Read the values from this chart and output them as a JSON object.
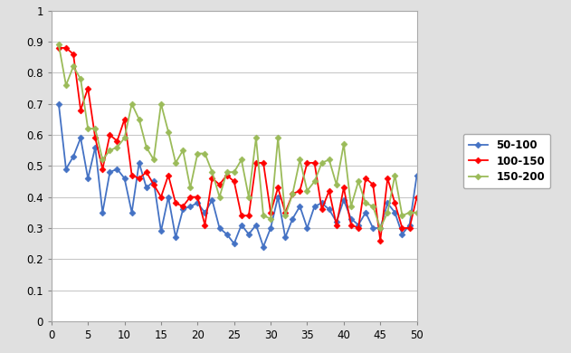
{
  "series": {
    "50-100": {
      "color": "#4472C4",
      "marker": "D",
      "x": [
        1,
        2,
        3,
        4,
        5,
        6,
        7,
        8,
        9,
        10,
        11,
        12,
        13,
        14,
        15,
        16,
        17,
        18,
        19,
        20,
        21,
        22,
        23,
        24,
        25,
        26,
        27,
        28,
        29,
        30,
        31,
        32,
        33,
        34,
        35,
        36,
        37,
        38,
        39,
        40,
        41,
        42,
        43,
        44,
        45,
        46,
        47,
        48,
        49,
        50
      ],
      "y": [
        0.7,
        0.49,
        0.53,
        0.59,
        0.46,
        0.56,
        0.35,
        0.48,
        0.49,
        0.46,
        0.35,
        0.51,
        0.43,
        0.45,
        0.29,
        0.4,
        0.27,
        0.36,
        0.37,
        0.38,
        0.35,
        0.39,
        0.3,
        0.28,
        0.25,
        0.31,
        0.28,
        0.31,
        0.24,
        0.3,
        0.4,
        0.27,
        0.33,
        0.37,
        0.3,
        0.37,
        0.38,
        0.36,
        0.32,
        0.39,
        0.33,
        0.31,
        0.35,
        0.3,
        0.3,
        0.38,
        0.35,
        0.28,
        0.31,
        0.47
      ]
    },
    "100-150": {
      "color": "#FF0000",
      "marker": "D",
      "x": [
        1,
        2,
        3,
        4,
        5,
        6,
        7,
        8,
        9,
        10,
        11,
        12,
        13,
        14,
        15,
        16,
        17,
        18,
        19,
        20,
        21,
        22,
        23,
        24,
        25,
        26,
        27,
        28,
        29,
        30,
        31,
        32,
        33,
        34,
        35,
        36,
        37,
        38,
        39,
        40,
        41,
        42,
        43,
        44,
        45,
        46,
        47,
        48,
        49,
        50
      ],
      "y": [
        0.88,
        0.88,
        0.86,
        0.68,
        0.75,
        0.59,
        0.49,
        0.6,
        0.58,
        0.65,
        0.47,
        0.46,
        0.48,
        0.44,
        0.4,
        0.47,
        0.38,
        0.37,
        0.4,
        0.4,
        0.31,
        0.46,
        0.44,
        0.47,
        0.45,
        0.34,
        0.34,
        0.51,
        0.51,
        0.35,
        0.43,
        0.35,
        0.41,
        0.42,
        0.51,
        0.51,
        0.36,
        0.42,
        0.31,
        0.43,
        0.31,
        0.3,
        0.46,
        0.44,
        0.26,
        0.46,
        0.38,
        0.3,
        0.3,
        0.4
      ]
    },
    "150-200": {
      "color": "#9BBB59",
      "marker": "D",
      "x": [
        1,
        2,
        3,
        4,
        5,
        6,
        7,
        8,
        9,
        10,
        11,
        12,
        13,
        14,
        15,
        16,
        17,
        18,
        19,
        20,
        21,
        22,
        23,
        24,
        25,
        26,
        27,
        28,
        29,
        30,
        31,
        32,
        33,
        34,
        35,
        36,
        37,
        38,
        39,
        40,
        41,
        42,
        43,
        44,
        45,
        46,
        47,
        48,
        49,
        50
      ],
      "y": [
        0.89,
        0.76,
        0.82,
        0.78,
        0.62,
        0.62,
        0.52,
        0.55,
        0.56,
        0.59,
        0.7,
        0.65,
        0.56,
        0.52,
        0.7,
        0.61,
        0.51,
        0.55,
        0.43,
        0.54,
        0.54,
        0.48,
        0.4,
        0.48,
        0.48,
        0.52,
        0.4,
        0.59,
        0.34,
        0.33,
        0.59,
        0.34,
        0.41,
        0.52,
        0.42,
        0.45,
        0.51,
        0.52,
        0.44,
        0.57,
        0.37,
        0.45,
        0.38,
        0.37,
        0.3,
        0.35,
        0.47,
        0.34,
        0.35,
        0.35
      ]
    }
  },
  "xlim": [
    0,
    50
  ],
  "ylim": [
    0,
    1.0
  ],
  "xticks": [
    0,
    5,
    10,
    15,
    20,
    25,
    30,
    35,
    40,
    45,
    50
  ],
  "yticks": [
    0,
    0.1,
    0.2,
    0.3,
    0.4,
    0.5,
    0.6,
    0.7,
    0.8,
    0.9,
    1
  ],
  "outer_bg": "#E0E0E0",
  "inner_bg": "#FFFFFF",
  "grid_color": "#C8C8C8",
  "legend_labels": [
    "50-100",
    "100-150",
    "150-200"
  ],
  "marker_size": 3.5,
  "linewidth": 1.3
}
